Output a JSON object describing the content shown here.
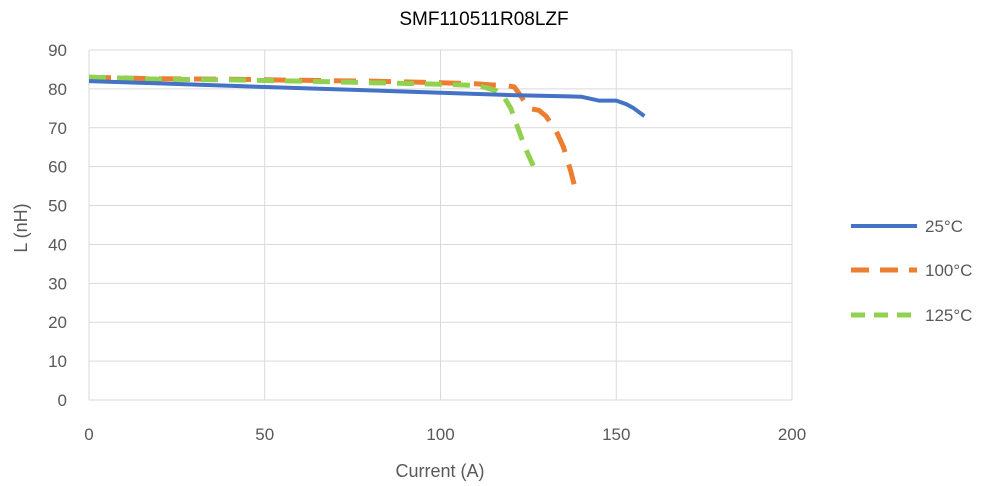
{
  "chart_data": {
    "type": "line",
    "title": "SMF110511R08LZF",
    "xlabel": "Current (A)",
    "ylabel": "L (nH)",
    "xlim": [
      0,
      200
    ],
    "ylim": [
      0,
      90
    ],
    "xticks": [
      0,
      50,
      100,
      150,
      200
    ],
    "yticks": [
      0,
      10,
      20,
      30,
      40,
      50,
      60,
      70,
      80,
      90
    ],
    "grid": true,
    "legend_position": "right",
    "series": [
      {
        "name": "25°C",
        "color": "#4472C4",
        "dash": "solid",
        "x": [
          0,
          20,
          40,
          60,
          80,
          100,
          120,
          130,
          135,
          140,
          145,
          150,
          153,
          155,
          158
        ],
        "y": [
          82,
          81.4,
          80.8,
          80.2,
          79.6,
          79,
          78.4,
          78.2,
          78.1,
          78,
          77,
          77,
          76,
          75,
          73
        ]
      },
      {
        "name": "100°C",
        "color": "#ED7D31",
        "dash": "dashed",
        "x": [
          0,
          20,
          40,
          60,
          80,
          100,
          110,
          115,
          118,
          121,
          123,
          125,
          128,
          130,
          133,
          135,
          136,
          137,
          138
        ],
        "y": [
          83,
          82.6,
          82.5,
          82.2,
          82,
          81.6,
          81.3,
          81,
          81,
          80.5,
          78,
          75,
          74.5,
          73,
          69,
          65,
          62,
          59,
          55.5
        ]
      },
      {
        "name": "125°C",
        "color": "#92D050",
        "dash": "dashed",
        "x": [
          0,
          20,
          40,
          60,
          80,
          100,
          110,
          113,
          116,
          118,
          120,
          122,
          124,
          125,
          126,
          127
        ],
        "y": [
          83,
          82.5,
          82.3,
          82,
          81.6,
          81.2,
          80.9,
          80.3,
          79.5,
          78,
          75,
          70,
          65,
          63,
          61,
          59
        ]
      }
    ]
  }
}
